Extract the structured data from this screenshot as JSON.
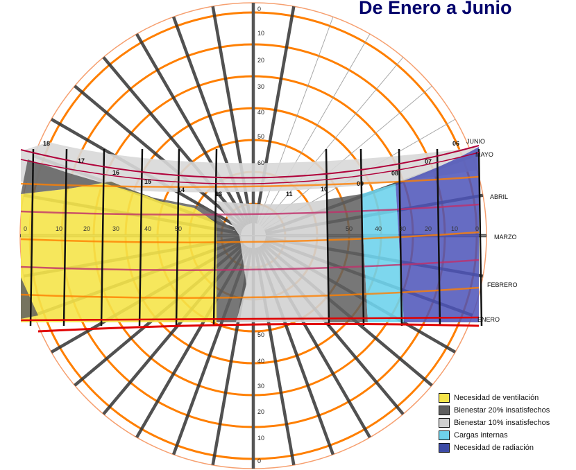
{
  "title": "De Enero a Junio",
  "colors": {
    "ventilacion": "#f5e44a",
    "bienestar20": "#5f5f5f",
    "bienestar10": "#cfcfcf",
    "cargas": "#6fd3ec",
    "radiacion": "#4b52b8",
    "grid_orange": "#ff7f00",
    "month_red": "#d40000"
  },
  "legend": [
    {
      "label": "Necesidad de ventilación",
      "color": "#f5e44a"
    },
    {
      "label": "Bienestar 20% insatisfechos",
      "color": "#5f5f5f"
    },
    {
      "label": "Bienestar 10% insatisfechos",
      "color": "#cfcfcf"
    },
    {
      "label": "Cargas internas",
      "color": "#6fd3ec"
    },
    {
      "label": "Necesidad de radiación",
      "color": "#3c4aa5"
    }
  ],
  "months": [
    "JUNIO",
    "MAYO",
    "ABRIL",
    "MARZO",
    "FEBRERO",
    "ENERO"
  ],
  "hours": [
    "18",
    "17",
    "16",
    "15",
    "14",
    "13",
    "11",
    "10",
    "09",
    "08",
    "07",
    "06"
  ],
  "altitude_top": [
    "0",
    "10",
    "20",
    "30",
    "40",
    "50",
    "60"
  ],
  "altitude_bottom": [
    "50",
    "40",
    "30",
    "20",
    "10",
    "0"
  ],
  "left_scale": [
    "0",
    "10",
    "20",
    "30",
    "40",
    "50"
  ],
  "right_scale": [
    "50",
    "40",
    "30",
    "20",
    "10",
    "0"
  ]
}
